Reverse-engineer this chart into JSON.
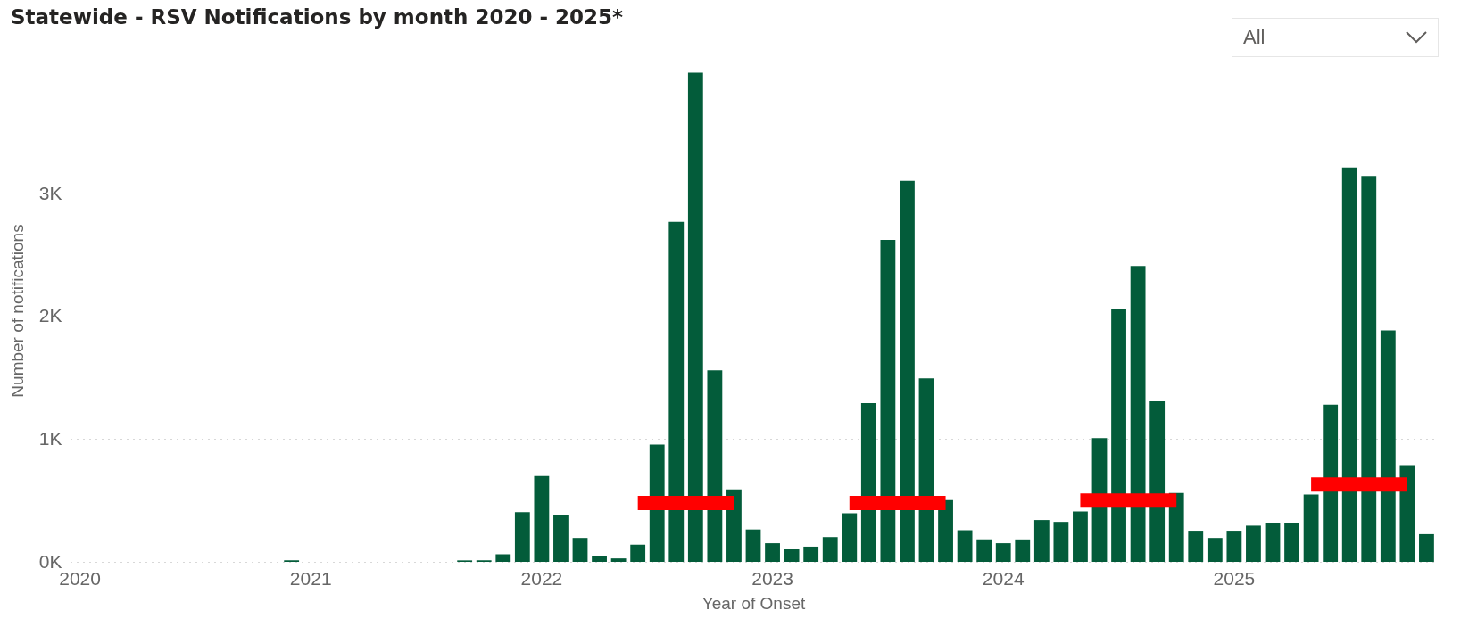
{
  "chart_data": {
    "type": "bar",
    "title": "Statewide - RSV Notifications by month 2020 - 2025*",
    "xlabel": "Year of Onset",
    "ylabel": "Number of notifications",
    "annotations": [
      "All"
    ],
    "categories": [
      "2020",
      null,
      null,
      null,
      null,
      null,
      null,
      null,
      null,
      null,
      null,
      null,
      "2021",
      null,
      null,
      null,
      null,
      null,
      null,
      null,
      null,
      null,
      null,
      null,
      "2022",
      null,
      null,
      null,
      null,
      null,
      null,
      null,
      null,
      null,
      null,
      null,
      "2023",
      null,
      null,
      null,
      null,
      null,
      null,
      null,
      null,
      null,
      null,
      null,
      "2024",
      null,
      null,
      null,
      null,
      null,
      null,
      null,
      null,
      null,
      null,
      null,
      "2025",
      null,
      null,
      null,
      null,
      null,
      null,
      null,
      null,
      null,
      null
    ],
    "series": [
      {
        "color": "#035c3a",
        "values": [
          0,
          0,
          0,
          0,
          0,
          0,
          0,
          0,
          0,
          0,
          0,
          12,
          0,
          0,
          0,
          0,
          0,
          0,
          0,
          0,
          12,
          12,
          62,
          406,
          700,
          380,
          195,
          47,
          28,
          140,
          956,
          2771,
          3987,
          1561,
          590,
          264,
          152,
          102,
          124,
          202,
          397,
          1294,
          2625,
          3106,
          1496,
          503,
          258,
          183,
          152,
          183,
          341,
          326,
          410,
          1009,
          2063,
          2411,
          1309,
          562,
          254,
          195,
          254,
          295,
          320,
          320,
          549,
          1282,
          3215,
          3146,
          1886,
          788,
          226
        ]
      },
      {
        "type": "line",
        "color": "#ff0000",
        "values": [
          null,
          null,
          null,
          null,
          null,
          null,
          null,
          null,
          null,
          null,
          null,
          null,
          null,
          null,
          null,
          null,
          null,
          null,
          null,
          null,
          null,
          null,
          null,
          null,
          null,
          null,
          null,
          null,
          null,
          480,
          480,
          480,
          480,
          480,
          480,
          null,
          null,
          null,
          null,
          null,
          480,
          480,
          480,
          480,
          480,
          480,
          null,
          null,
          null,
          null,
          null,
          null,
          500,
          500,
          500,
          500,
          500,
          500,
          null,
          null,
          null,
          null,
          null,
          null,
          630,
          630,
          630,
          630,
          630,
          630,
          null
        ]
      }
    ],
    "ylim": [
      0,
      4100
    ],
    "yticks": [
      {
        "value": 0,
        "label": "0K"
      },
      {
        "value": 1000,
        "label": "1K"
      },
      {
        "value": 2000,
        "label": "2K"
      },
      {
        "value": 3000,
        "label": "3K"
      }
    ],
    "grid": "y"
  }
}
